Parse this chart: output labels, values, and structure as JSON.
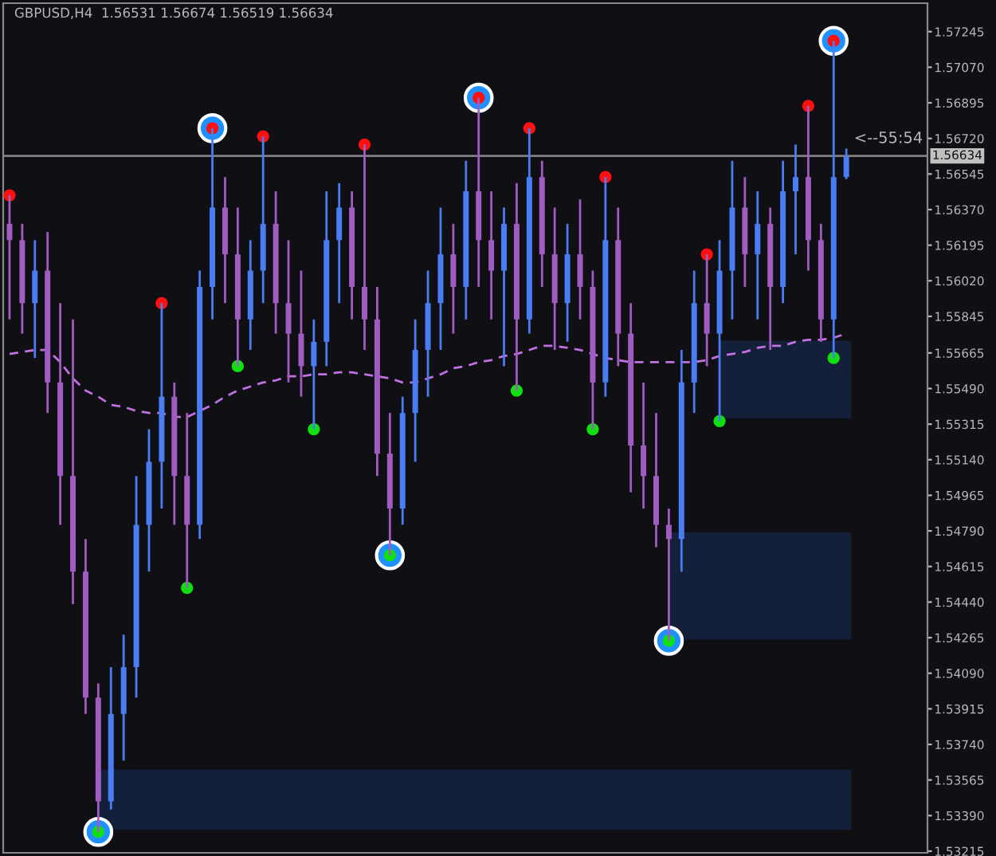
{
  "chart_data": {
    "type": "candlestick",
    "title": "GBPUSD,H4  1.56531 1.56674 1.56519 1.56634",
    "categories": [
      null,
      null,
      null,
      null,
      null,
      null,
      null,
      null,
      null,
      null,
      null,
      null,
      null,
      null,
      null,
      null,
      null,
      null,
      null,
      null,
      null,
      null,
      null,
      null,
      null,
      null,
      null,
      null,
      null,
      null,
      null,
      null,
      null,
      null,
      null,
      null,
      null,
      null,
      null,
      null,
      null,
      null,
      null,
      null,
      null,
      null,
      null,
      null,
      null,
      null,
      null,
      null,
      null,
      null,
      null,
      null,
      null,
      null,
      null,
      null,
      null,
      null,
      null,
      null,
      null,
      null,
      null
    ],
    "ohlc": [
      [
        1.563,
        1.5644,
        1.5583,
        1.5622
      ],
      [
        1.5622,
        1.563,
        1.5576,
        1.5591
      ],
      [
        1.5591,
        1.5622,
        1.5564,
        1.5607
      ],
      [
        1.5607,
        1.5626,
        1.5537,
        1.5552
      ],
      [
        1.5552,
        1.5591,
        1.5482,
        1.5506
      ],
      [
        1.5506,
        1.5583,
        1.5443,
        1.5459
      ],
      [
        1.5459,
        1.5475,
        1.5389,
        1.5397
      ],
      [
        1.5397,
        1.5404,
        1.5331,
        1.5346
      ],
      [
        1.5346,
        1.5412,
        1.5342,
        1.5389
      ],
      [
        1.5389,
        1.5428,
        1.5366,
        1.5412
      ],
      [
        1.5412,
        1.5506,
        1.5397,
        1.5482
      ],
      [
        1.5482,
        1.5529,
        1.5459,
        1.5513
      ],
      [
        1.5513,
        1.5591,
        1.549,
        1.5545
      ],
      [
        1.5545,
        1.5552,
        1.5482,
        1.5506
      ],
      [
        1.5506,
        1.5537,
        1.5451,
        1.5482
      ],
      [
        1.5482,
        1.5607,
        1.5475,
        1.5599
      ],
      [
        1.5599,
        1.5677,
        1.5583,
        1.5638
      ],
      [
        1.5638,
        1.5653,
        1.5591,
        1.5615
      ],
      [
        1.5615,
        1.5638,
        1.556,
        1.5583
      ],
      [
        1.5583,
        1.5622,
        1.5568,
        1.5607
      ],
      [
        1.5607,
        1.5673,
        1.5591,
        1.563
      ],
      [
        1.563,
        1.5646,
        1.5576,
        1.5591
      ],
      [
        1.5591,
        1.5622,
        1.5552,
        1.5576
      ],
      [
        1.5576,
        1.5607,
        1.5545,
        1.556
      ],
      [
        1.556,
        1.5583,
        1.5529,
        1.5572
      ],
      [
        1.5572,
        1.5646,
        1.556,
        1.5622
      ],
      [
        1.5622,
        1.565,
        1.5591,
        1.5638
      ],
      [
        1.5638,
        1.5646,
        1.5583,
        1.5599
      ],
      [
        1.5599,
        1.5669,
        1.5568,
        1.5583
      ],
      [
        1.5583,
        1.5599,
        1.5506,
        1.5517
      ],
      [
        1.5517,
        1.5537,
        1.5467,
        1.549
      ],
      [
        1.549,
        1.5545,
        1.5482,
        1.5537
      ],
      [
        1.5537,
        1.5583,
        1.5513,
        1.5568
      ],
      [
        1.5568,
        1.5607,
        1.5545,
        1.5591
      ],
      [
        1.5591,
        1.5638,
        1.5568,
        1.5615
      ],
      [
        1.5615,
        1.563,
        1.5576,
        1.5599
      ],
      [
        1.5599,
        1.5661,
        1.5583,
        1.5646
      ],
      [
        1.5646,
        1.5692,
        1.5599,
        1.5622
      ],
      [
        1.5622,
        1.5646,
        1.5583,
        1.5607
      ],
      [
        1.5607,
        1.5638,
        1.556,
        1.563
      ],
      [
        1.563,
        1.565,
        1.5548,
        1.5583
      ],
      [
        1.5583,
        1.5677,
        1.5576,
        1.5653
      ],
      [
        1.5653,
        1.5661,
        1.5599,
        1.5615
      ],
      [
        1.5615,
        1.5638,
        1.5568,
        1.5591
      ],
      [
        1.5591,
        1.563,
        1.5572,
        1.5615
      ],
      [
        1.5615,
        1.5642,
        1.5583,
        1.5599
      ],
      [
        1.5599,
        1.5607,
        1.5529,
        1.5552
      ],
      [
        1.5552,
        1.5653,
        1.5545,
        1.5622
      ],
      [
        1.5622,
        1.5638,
        1.556,
        1.5576
      ],
      [
        1.5576,
        1.5591,
        1.5498,
        1.5521
      ],
      [
        1.5521,
        1.5552,
        1.549,
        1.5506
      ],
      [
        1.5506,
        1.5537,
        1.5471,
        1.5482
      ],
      [
        1.5482,
        1.549,
        1.5425,
        1.5475
      ],
      [
        1.5475,
        1.5568,
        1.5459,
        1.5552
      ],
      [
        1.5552,
        1.5607,
        1.5537,
        1.5591
      ],
      [
        1.5591,
        1.5615,
        1.556,
        1.5576
      ],
      [
        1.5576,
        1.5622,
        1.5533,
        1.5607
      ],
      [
        1.5607,
        1.5661,
        1.5583,
        1.5638
      ],
      [
        1.5638,
        1.5653,
        1.5599,
        1.5615
      ],
      [
        1.5615,
        1.5646,
        1.5583,
        1.563
      ],
      [
        1.563,
        1.5638,
        1.5568,
        1.5599
      ],
      [
        1.5599,
        1.5661,
        1.5591,
        1.5646
      ],
      [
        1.5646,
        1.5669,
        1.5615,
        1.5653
      ],
      [
        1.5653,
        1.5688,
        1.5607,
        1.5622
      ],
      [
        1.5622,
        1.563,
        1.5572,
        1.5583
      ],
      [
        1.5583,
        1.572,
        1.5564,
        1.5653
      ],
      [
        1.5653,
        1.5667,
        1.5652,
        1.5663
      ]
    ],
    "series": [
      {
        "type": "line",
        "color": "#c070e0",
        "line_style": "dashed",
        "marker": "none",
        "values": [
          1.5566,
          1.5567,
          1.5568,
          1.5568,
          1.5562,
          1.5554,
          1.5548,
          1.5545,
          1.5541,
          1.554,
          1.5538,
          1.5537,
          1.5537,
          1.5535,
          1.5535,
          1.5538,
          1.5541,
          1.5545,
          1.5548,
          1.555,
          1.5552,
          1.5553,
          1.5555,
          1.5555,
          1.5556,
          1.5556,
          1.5557,
          1.5557,
          1.5556,
          1.5555,
          1.5554,
          1.5552,
          1.5552,
          1.5554,
          1.5556,
          1.5559,
          1.556,
          1.5562,
          1.5563,
          1.5565,
          1.5566,
          1.5568,
          1.557,
          1.557,
          1.5569,
          1.5568,
          1.5566,
          1.5564,
          1.5563,
          1.5562,
          1.5562,
          1.5562,
          1.5562,
          1.5562,
          1.5562,
          1.5563,
          1.5565,
          1.5566,
          1.5567,
          1.5569,
          1.557,
          1.557,
          1.5572,
          1.5573,
          1.5573,
          1.5574,
          1.5576
        ]
      },
      {
        "type": "scatter",
        "color": "#1e90ff",
        "marker": "circle",
        "values": [
          null,
          null,
          null,
          null,
          null,
          null,
          null,
          1.5331,
          null,
          null,
          null,
          null,
          null,
          null,
          null,
          null,
          1.5677,
          null,
          null,
          null,
          null,
          null,
          null,
          null,
          null,
          null,
          null,
          null,
          null,
          null,
          1.5467,
          null,
          null,
          null,
          null,
          null,
          null,
          1.5692,
          null,
          null,
          null,
          null,
          null,
          null,
          null,
          null,
          null,
          null,
          null,
          null,
          null,
          null,
          1.5425,
          null,
          null,
          null,
          null,
          null,
          null,
          null,
          null,
          null,
          null,
          null,
          null,
          1.572,
          null
        ]
      },
      {
        "type": "scatter",
        "color": "#ff1010",
        "marker": "circle",
        "values": [
          1.5644,
          null,
          null,
          null,
          null,
          null,
          null,
          null,
          null,
          null,
          null,
          null,
          1.5591,
          null,
          null,
          null,
          1.5677,
          null,
          null,
          null,
          1.5673,
          null,
          null,
          null,
          null,
          null,
          null,
          null,
          1.5669,
          null,
          null,
          null,
          null,
          null,
          null,
          null,
          null,
          1.5692,
          null,
          null,
          null,
          1.5677,
          null,
          null,
          null,
          null,
          null,
          1.5653,
          null,
          null,
          null,
          null,
          null,
          null,
          null,
          1.5615,
          null,
          null,
          null,
          null,
          null,
          null,
          null,
          1.5688,
          null,
          1.572,
          null
        ]
      },
      {
        "type": "scatter",
        "color": "#10e010",
        "marker": "circle",
        "values": [
          null,
          null,
          null,
          null,
          null,
          null,
          null,
          1.5331,
          null,
          null,
          null,
          null,
          null,
          null,
          1.5451,
          null,
          null,
          null,
          1.556,
          null,
          null,
          null,
          null,
          null,
          1.5529,
          null,
          null,
          null,
          null,
          null,
          1.5467,
          null,
          null,
          null,
          null,
          null,
          null,
          null,
          null,
          null,
          1.5548,
          null,
          null,
          null,
          null,
          null,
          1.5529,
          null,
          null,
          null,
          null,
          null,
          1.5425,
          null,
          null,
          null,
          1.5533,
          null,
          null,
          null,
          null,
          null,
          null,
          null,
          null,
          1.5564,
          null
        ]
      }
    ],
    "bands": [
      {
        "axis": "y",
        "from": 1.55344,
        "to": 1.55725,
        "color": "#14203a"
      },
      {
        "axis": "y",
        "from": 1.54255,
        "to": 1.54784,
        "color": "#14203a"
      },
      {
        "axis": "y",
        "from": 1.53321,
        "to": 1.53617,
        "color": "#14203a"
      }
    ],
    "ref_lines": [
      {
        "axis": "y",
        "value": 1.56634,
        "label": "1.56634",
        "color": "#808080"
      }
    ],
    "annotations": [
      {
        "text": "<--55:54",
        "y": 1.5666
      }
    ],
    "ylim": [
      1.53207,
      1.57385
    ],
    "yticks": [
      1.57245,
      {
        "value": 1.5707,
        "label": "1.57070"
      },
      1.56895,
      {
        "value": 1.5672,
        "label": "1.56720"
      },
      1.56545,
      {
        "value": 1.5637,
        "label": "1.56370"
      },
      1.56195,
      {
        "value": 1.5602,
        "label": "1.56020"
      },
      1.55845,
      1.55665,
      {
        "value": 1.5549,
        "label": "1.55490"
      },
      1.55315,
      {
        "value": 1.5514,
        "label": "1.55140"
      },
      1.54965,
      {
        "value": 1.5479,
        "label": "1.54790"
      },
      1.54615,
      {
        "value": 1.5444,
        "label": "1.54440"
      },
      1.54265,
      {
        "value": 1.5409,
        "label": "1.54090"
      },
      1.53915,
      {
        "value": 1.5374,
        "label": "1.53740"
      },
      1.53565,
      {
        "value": 1.5339,
        "label": "1.53390"
      },
      1.53215
    ],
    "grid": false,
    "tick_labels": "y",
    "legend": false
  }
}
